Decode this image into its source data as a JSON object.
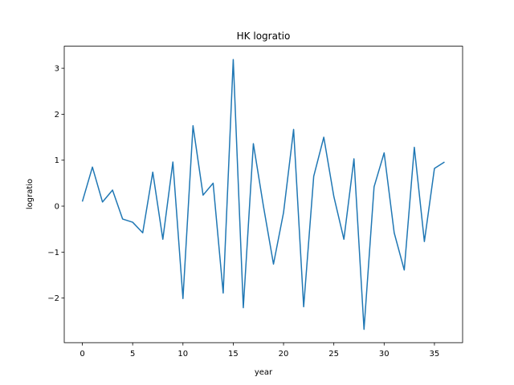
{
  "chart_data": {
    "type": "line",
    "title": "HK logratio",
    "xlabel": "year",
    "ylabel": "logratio",
    "x": [
      0,
      1,
      2,
      3,
      4,
      5,
      6,
      7,
      8,
      9,
      10,
      11,
      12,
      13,
      14,
      15,
      16,
      17,
      18,
      19,
      20,
      21,
      22,
      23,
      24,
      25,
      26,
      27,
      28,
      29,
      30,
      31,
      32,
      33,
      34,
      35,
      36
    ],
    "series": [
      {
        "color": "#1f77b4",
        "values": [
          0.1,
          0.85,
          0.09,
          0.35,
          -0.28,
          -0.35,
          -0.58,
          0.74,
          -0.72,
          0.96,
          -2.01,
          1.75,
          0.24,
          0.5,
          -1.89,
          3.19,
          -2.21,
          1.36,
          0.0,
          -1.26,
          -0.14,
          1.67,
          -2.19,
          0.65,
          1.5,
          0.21,
          -0.72,
          1.03,
          -2.68,
          0.42,
          1.16,
          -0.58,
          -1.39,
          1.28,
          -0.77,
          0.82,
          0.96
        ]
      }
    ],
    "xlim": [
      -1.8,
      37.8
    ],
    "xticks": [
      0,
      5,
      10,
      15,
      20,
      25,
      30,
      35
    ],
    "ylim": [
      -2.97,
      3.48
    ],
    "yticks": [
      {
        "value": -2,
        "label": "−2"
      },
      {
        "value": -1,
        "label": "−1"
      },
      0,
      1,
      2,
      3
    ]
  }
}
